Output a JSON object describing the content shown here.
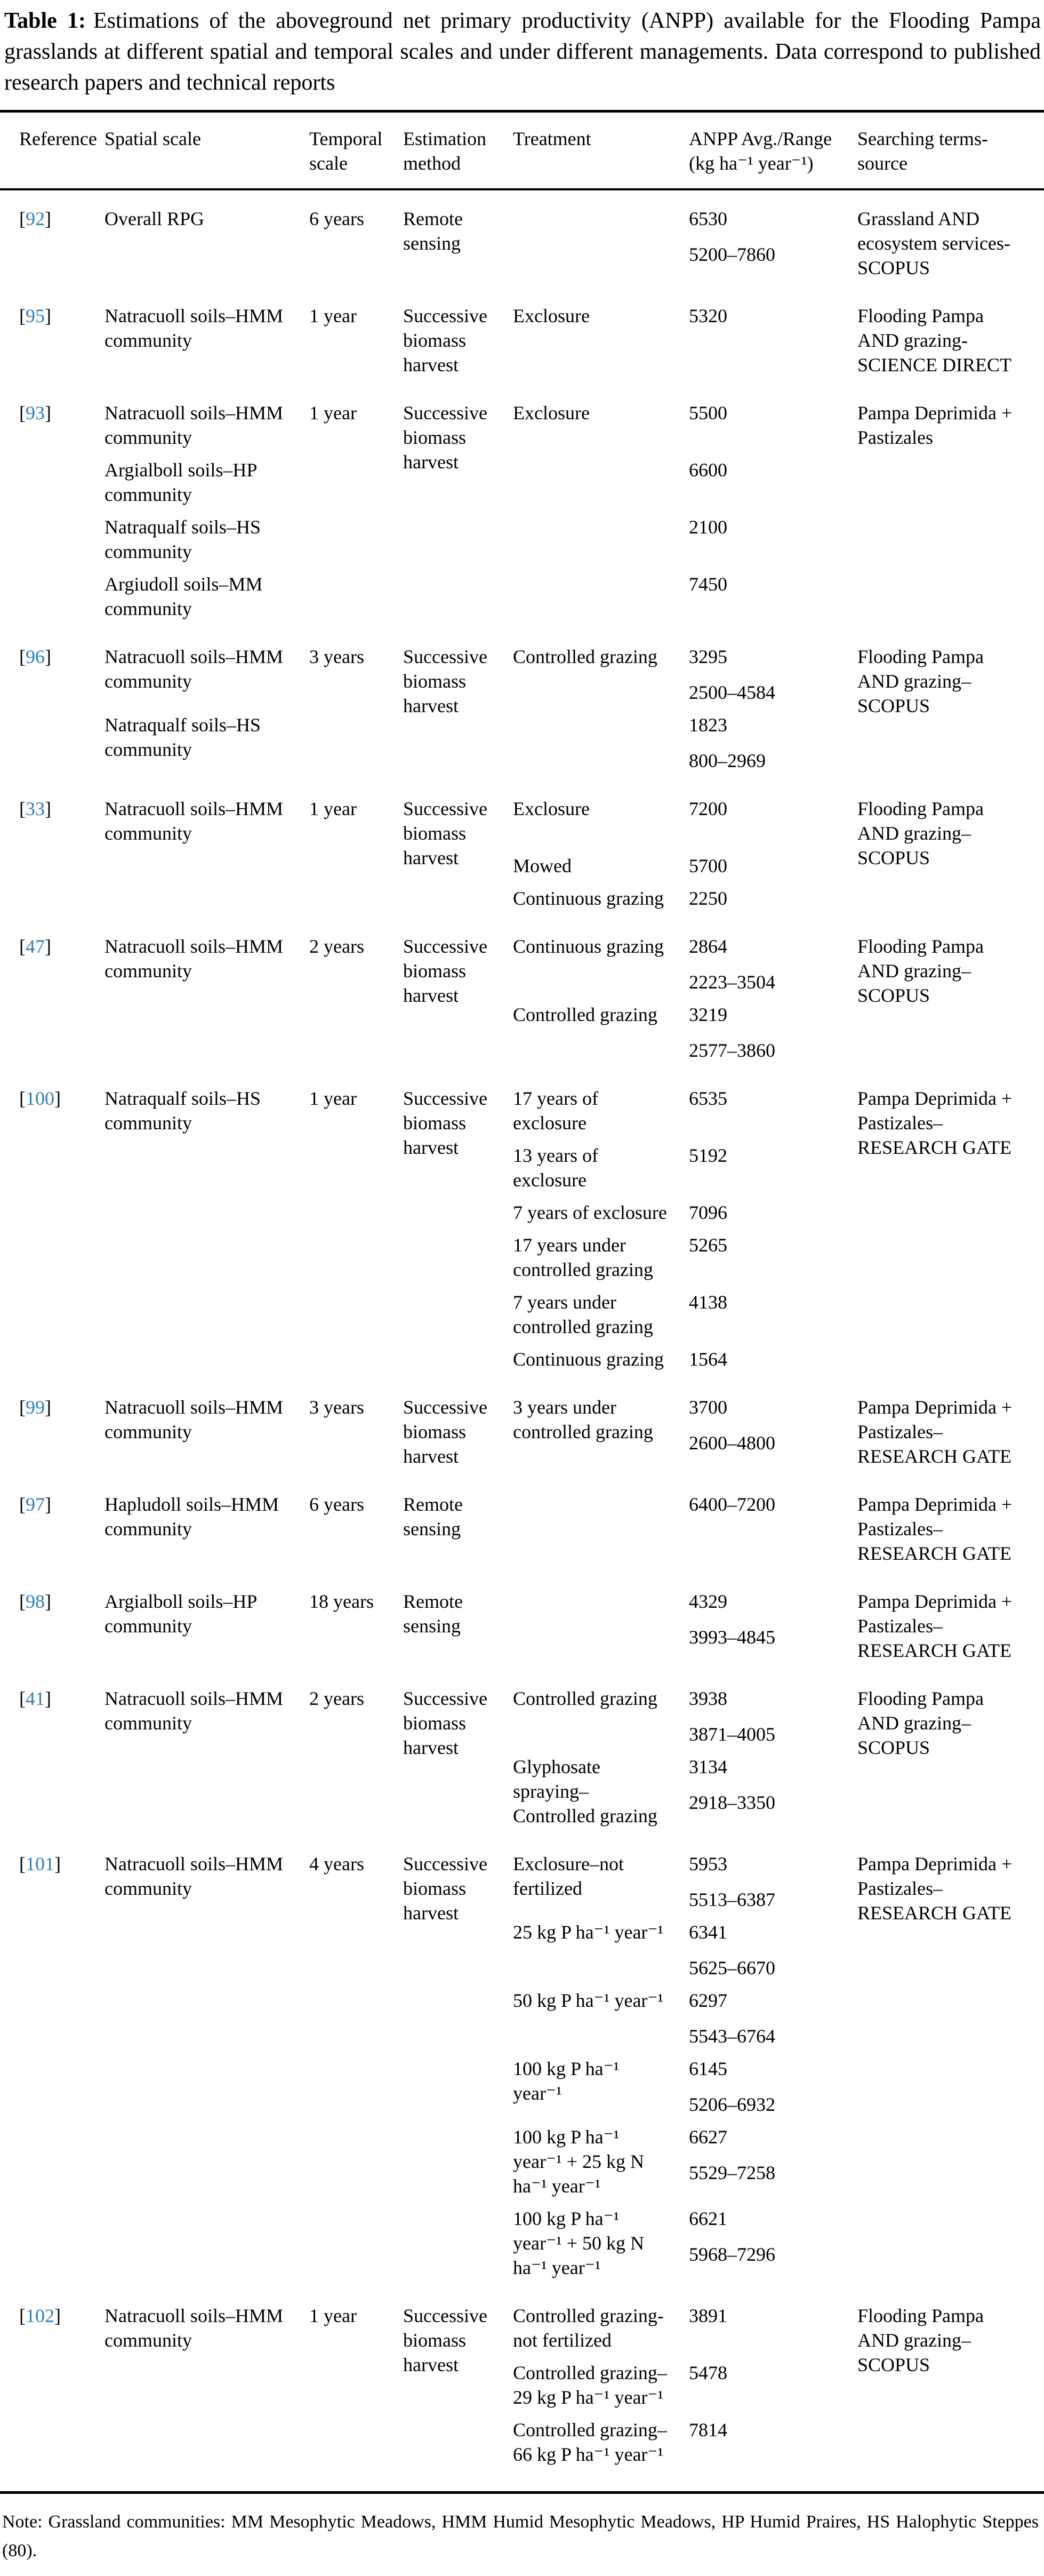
{
  "caption": {
    "label": "Table 1:",
    "text": "Estimations of the aboveground net primary productivity (ANPP) available for the Flooding Pampa grasslands at different spatial and temporal scales and under different managements. Data correspond to published research papers and technical reports"
  },
  "colors": {
    "reference_link": "#2b7fbe",
    "text": "#000000",
    "background": "#ffffff",
    "rule": "#000000"
  },
  "table": {
    "headers": [
      "Reference",
      "Spatial scale",
      "Temporal\nscale",
      "Estimation\nmethod",
      "Treatment",
      "ANPP Avg./Range\n(kg ha⁻¹ year⁻¹)",
      "Searching terms-\nsource"
    ],
    "rows": [
      {
        "ref": "92",
        "temporal": "6 years",
        "estimation": "Remote\nsensing",
        "searching": "Grassland AND\necosystem services-\nSCOPUS",
        "entries": [
          {
            "spatial": "Overall RPG",
            "values": [
              "6530",
              "5200–7860"
            ]
          }
        ]
      },
      {
        "ref": "95",
        "temporal": "1 year",
        "estimation": "Successive\nbiomass\nharvest",
        "searching": "Flooding Pampa\nAND grazing-\nSCIENCE DIRECT",
        "entries": [
          {
            "spatial": "Natracuoll soils–HMM\ncommunity",
            "treatment": "Exclosure",
            "values": [
              "5320"
            ]
          }
        ]
      },
      {
        "ref": "93",
        "temporal": "1 year",
        "estimation": "Successive\nbiomass\nharvest",
        "searching": "Pampa Deprimida +\nPastizales",
        "entries": [
          {
            "spatial": "Natracuoll soils–HMM\ncommunity",
            "treatment": "Exclosure",
            "values": [
              "5500"
            ]
          },
          {
            "spatial": "Argialboll soils–HP\ncommunity",
            "values": [
              "6600"
            ]
          },
          {
            "spatial": "Natraqualf soils–HS\ncommunity",
            "values": [
              "2100"
            ]
          },
          {
            "spatial": "Argiudoll soils–MM\ncommunity",
            "values": [
              "7450"
            ]
          }
        ]
      },
      {
        "ref": "96",
        "temporal": "3 years",
        "estimation": "Successive\nbiomass\nharvest",
        "searching": "Flooding Pampa\nAND grazing–\nSCOPUS",
        "entries": [
          {
            "spatial": "Natracuoll soils–HMM\ncommunity",
            "treatment": "Controlled grazing",
            "values": [
              "3295",
              "2500–4584"
            ]
          },
          {
            "spatial": "Natraqualf soils–HS\ncommunity",
            "values": [
              "1823",
              "800–2969"
            ]
          }
        ]
      },
      {
        "ref": "33",
        "temporal": "1 year",
        "estimation": "Successive\nbiomass\nharvest",
        "searching": "Flooding Pampa\nAND grazing–\nSCOPUS",
        "entries": [
          {
            "spatial": "Natracuoll soils–HMM\ncommunity",
            "treatment": "Exclosure",
            "values": [
              "7200"
            ]
          },
          {
            "treatment": "Mowed",
            "values": [
              "5700"
            ]
          },
          {
            "treatment": "Continuous grazing",
            "values": [
              "2250"
            ]
          }
        ]
      },
      {
        "ref": "47",
        "temporal": "2 years",
        "estimation": "Successive\nbiomass\nharvest",
        "searching": "Flooding Pampa\nAND grazing–\nSCOPUS",
        "entries": [
          {
            "spatial": "Natracuoll soils–HMM\ncommunity",
            "treatment": "Continuous grazing",
            "values": [
              "2864",
              "2223–3504"
            ]
          },
          {
            "treatment": "Controlled grazing",
            "values": [
              "3219",
              "2577–3860"
            ]
          }
        ]
      },
      {
        "ref": "100",
        "temporal": "1 year",
        "estimation": "Successive\nbiomass\nharvest",
        "searching": "Pampa Deprimida +\nPastizales–\nRESEARCH GATE",
        "entries": [
          {
            "spatial": "Natraqualf soils–HS\ncommunity",
            "treatment": "17 years of\nexclosure",
            "values": [
              "6535"
            ]
          },
          {
            "treatment": "13 years of\nexclosure",
            "values": [
              "5192"
            ]
          },
          {
            "treatment": "7 years of exclosure",
            "values": [
              "7096"
            ]
          },
          {
            "treatment": "17 years under\ncontrolled grazing",
            "values": [
              "5265"
            ]
          },
          {
            "treatment": "7 years under\ncontrolled grazing",
            "values": [
              "4138"
            ]
          },
          {
            "treatment": "Continuous grazing",
            "values": [
              "1564"
            ]
          }
        ]
      },
      {
        "ref": "99",
        "temporal": "3 years",
        "estimation": "Successive\nbiomass\nharvest",
        "searching": "Pampa Deprimida +\nPastizales–\nRESEARCH GATE",
        "entries": [
          {
            "spatial": "Natracuoll soils–HMM\ncommunity",
            "treatment": "3 years under\ncontrolled grazing",
            "values": [
              "3700",
              "2600–4800"
            ]
          }
        ]
      },
      {
        "ref": "97",
        "temporal": "6 years",
        "estimation": "Remote\nsensing",
        "searching": "Pampa Deprimida +\nPastizales–\nRESEARCH GATE",
        "entries": [
          {
            "spatial": "Hapludoll soils–HMM\ncommunity",
            "values": [
              "6400–7200"
            ]
          }
        ]
      },
      {
        "ref": "98",
        "temporal": "18 years",
        "estimation": "Remote\nsensing",
        "searching": "Pampa Deprimida +\nPastizales–\nRESEARCH GATE",
        "entries": [
          {
            "spatial": "Argialboll soils–HP\ncommunity",
            "values": [
              "4329",
              "3993–4845"
            ]
          }
        ]
      },
      {
        "ref": "41",
        "temporal": "2 years",
        "estimation": "Successive\nbiomass\nharvest",
        "searching": "Flooding Pampa\nAND grazing–\nSCOPUS",
        "entries": [
          {
            "spatial": "Natracuoll soils–HMM\ncommunity",
            "treatment": "Controlled grazing",
            "values": [
              "3938",
              "3871–4005"
            ]
          },
          {
            "treatment": "Glyphosate\nspraying–\nControlled grazing",
            "values": [
              "3134",
              "2918–3350"
            ]
          }
        ]
      },
      {
        "ref": "101",
        "temporal": "4 years",
        "estimation": "Successive\nbiomass\nharvest",
        "searching": "Pampa Deprimida +\nPastizales–\nRESEARCH GATE",
        "entries": [
          {
            "spatial": "Natracuoll soils–HMM\ncommunity",
            "treatment": "Exclosure–not\nfertilized",
            "values": [
              "5953",
              "5513–6387"
            ]
          },
          {
            "treatment": "25 kg P ha⁻¹ year⁻¹",
            "values": [
              "6341",
              "5625–6670"
            ]
          },
          {
            "treatment": "50 kg P ha⁻¹ year⁻¹",
            "values": [
              "6297",
              "5543–6764"
            ]
          },
          {
            "treatment": "100 kg P ha⁻¹\nyear⁻¹",
            "values": [
              "6145",
              "5206–6932"
            ]
          },
          {
            "treatment": "100 kg P ha⁻¹\nyear⁻¹ + 25 kg N\nha⁻¹ year⁻¹",
            "values": [
              "6627",
              "5529–7258"
            ]
          },
          {
            "treatment": "100 kg P ha⁻¹\nyear⁻¹ + 50 kg N\nha⁻¹ year⁻¹",
            "values": [
              "6621",
              "5968–7296"
            ]
          }
        ]
      },
      {
        "ref": "102",
        "temporal": "1 year",
        "estimation": "Successive\nbiomass\nharvest",
        "searching": "Flooding Pampa\nAND grazing–\nSCOPUS",
        "entries": [
          {
            "spatial": "Natracuoll soils–HMM\ncommunity",
            "treatment": "Controlled grazing-\nnot fertilized",
            "values": [
              "3891"
            ]
          },
          {
            "treatment": "Controlled grazing–\n29 kg P ha⁻¹ year⁻¹",
            "values": [
              "5478"
            ]
          },
          {
            "treatment": "Controlled grazing–\n66 kg P ha⁻¹ year⁻¹",
            "values": [
              "7814"
            ]
          }
        ]
      }
    ]
  },
  "note": "Note: Grassland communities: MM Mesophytic Meadows, HMM Humid Mesophytic Meadows, HP Humid Praires, HS Halophytic Steppes (80)."
}
